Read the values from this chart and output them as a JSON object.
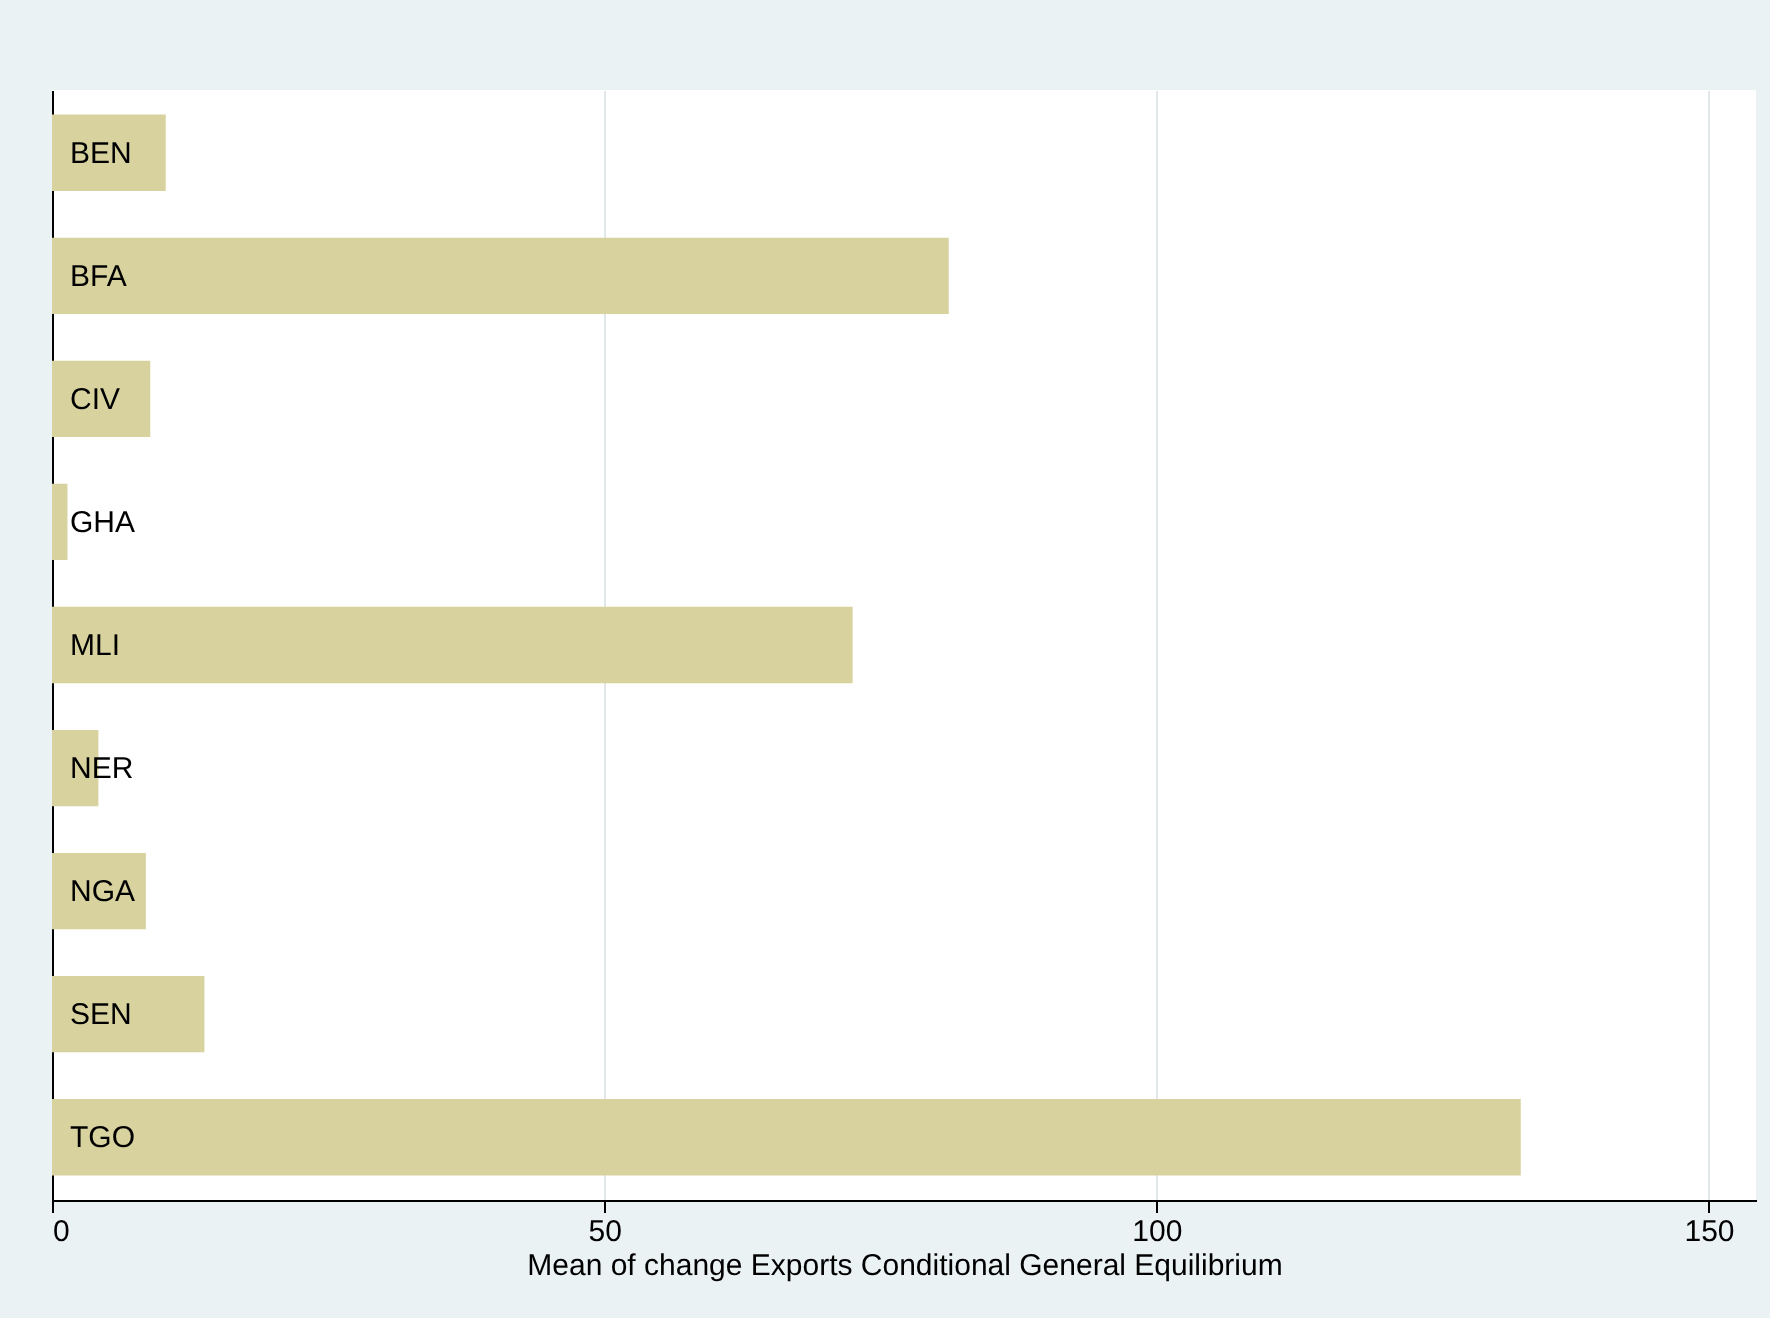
{
  "chart_data": {
    "type": "bar",
    "orientation": "horizontal",
    "xlabel": "Mean of change Exports Conditional General Equilibrium",
    "categories": [
      "BEN",
      "BFA",
      "CIV",
      "GHA",
      "MLI",
      "NER",
      "NGA",
      "SEN",
      "TGO"
    ],
    "values": [
      10.3,
      81.2,
      8.9,
      1.4,
      72.5,
      4.2,
      8.5,
      13.8,
      133
    ],
    "color": "#d7d29e",
    "xlim": [
      0,
      154.3
    ],
    "xticks": [
      0,
      50,
      100,
      150
    ],
    "grid": "x",
    "tick_labels": "x"
  }
}
